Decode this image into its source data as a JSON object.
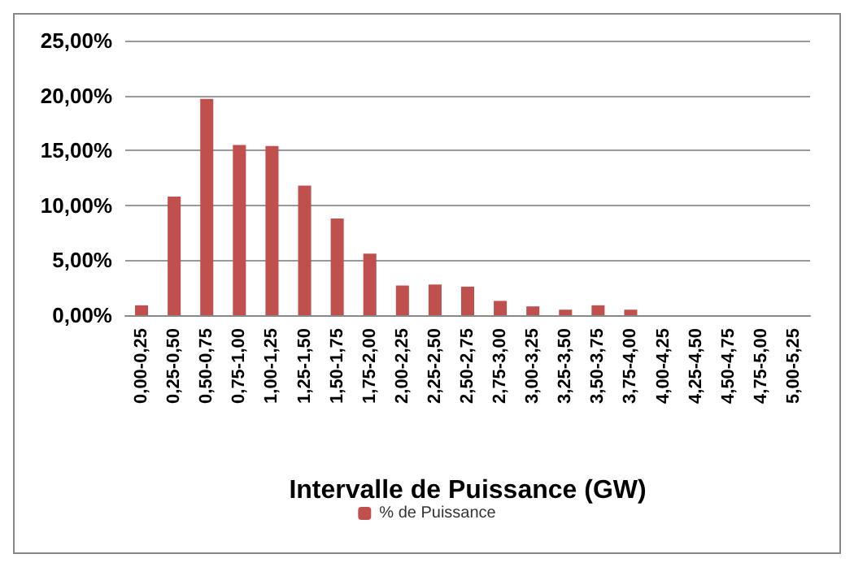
{
  "chart_data": {
    "type": "bar",
    "xlabel": "Intervalle de Puissance (GW)",
    "categories": [
      "0,00-0,25",
      "0,25-0,50",
      "0,50-0,75",
      "0,75-1,00",
      "1,00-1,25",
      "1,25-1,50",
      "1,50-1,75",
      "1,75-2,00",
      "2,00-2,25",
      "2,25-2,50",
      "2,50-2,75",
      "2,75-3,00",
      "3,00-3,25",
      "3,25-3,50",
      "3,50-3,75",
      "3,75-4,00",
      "4,00-4,25",
      "4,25-4,50",
      "4,50-4,75",
      "4,75-5,00",
      "5,00-5,25"
    ],
    "series": [
      {
        "name": "% de Puissance",
        "color": "#c0504d",
        "values": [
          0.9,
          10.8,
          19.7,
          15.5,
          15.4,
          11.8,
          8.8,
          5.6,
          2.7,
          2.8,
          2.6,
          1.3,
          0.8,
          0.5,
          0.9,
          0.5,
          0,
          0,
          0,
          0,
          0
        ]
      }
    ],
    "ylim": [
      0,
      25
    ],
    "yticks": [
      {
        "value": 0,
        "label": "0,00%"
      },
      {
        "value": 5,
        "label": "5,00%"
      },
      {
        "value": 10,
        "label": "10,00%"
      },
      {
        "value": 15,
        "label": "15,00%"
      },
      {
        "value": 20,
        "label": "20,00%"
      },
      {
        "value": 25,
        "label": "25,00%"
      }
    ],
    "grid": "y",
    "legend": "bottom"
  }
}
